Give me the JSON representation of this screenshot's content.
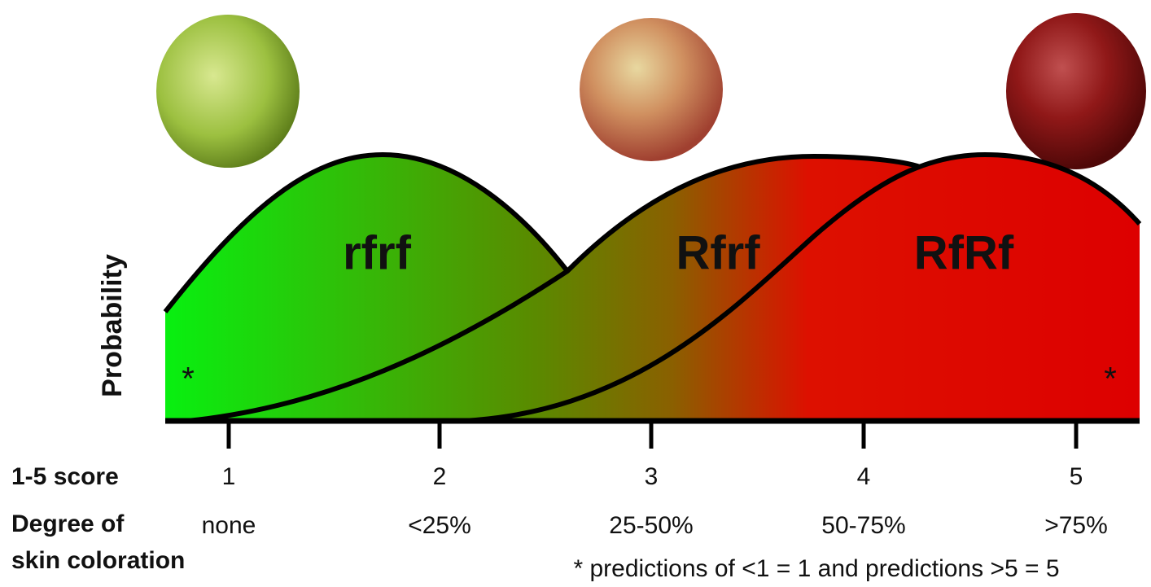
{
  "axis_label": "Probability",
  "genotypes": [
    "rfrf",
    "Rfrf",
    "RfRf"
  ],
  "asterisks": [
    "*",
    "*"
  ],
  "score_row": {
    "label": "1-5 score",
    "values": [
      "1",
      "2",
      "3",
      "4",
      "5"
    ]
  },
  "degree_row": {
    "label": [
      "Degree of",
      "skin coloration"
    ],
    "values": [
      "none",
      "<25%",
      "25-50%",
      "50-75%",
      ">75%"
    ]
  },
  "footnote": "* predictions of <1 = 1 and predictions >5 = 5"
}
